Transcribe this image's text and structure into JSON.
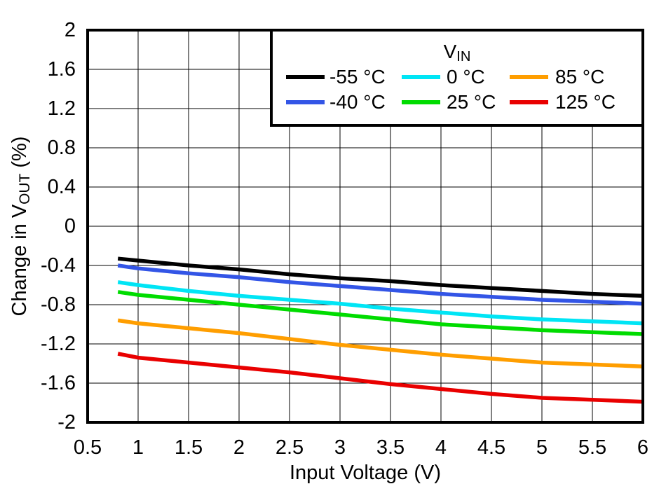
{
  "chart_data": {
    "type": "line",
    "title": "",
    "xlabel": "Input Voltage (V)",
    "ylabel": "Change in VOUT (%)",
    "ylabel_parts": {
      "prefix": "Change in V",
      "sub": "OUT",
      "suffix": " (%)"
    },
    "xlim": [
      0.5,
      6
    ],
    "ylim": [
      -2,
      2
    ],
    "grid": true,
    "x_ticks": [
      "0.5",
      "1",
      "1.5",
      "2",
      "2.5",
      "3",
      "3.5",
      "4",
      "4.5",
      "5",
      "5.5",
      "6"
    ],
    "y_ticks": [
      "2",
      "1.6",
      "1.2",
      "0.8",
      "0.4",
      "0",
      "-0.4",
      "-0.8",
      "-1.2",
      "-1.6",
      "-2"
    ],
    "legend": {
      "title": "VIN",
      "title_parts": {
        "prefix": "V",
        "sub": "IN"
      },
      "position": "top-right"
    },
    "x": [
      0.8,
      1,
      1.5,
      2,
      2.5,
      3,
      3.5,
      4,
      4.5,
      5,
      5.5,
      6
    ],
    "series": [
      {
        "name": "-55 °C",
        "color": "#000000",
        "values": [
          -0.33,
          -0.35,
          -0.4,
          -0.44,
          -0.49,
          -0.53,
          -0.56,
          -0.6,
          -0.63,
          -0.66,
          -0.69,
          -0.71
        ]
      },
      {
        "name": "-40 °C",
        "color": "#3355E6",
        "values": [
          -0.4,
          -0.43,
          -0.48,
          -0.52,
          -0.57,
          -0.61,
          -0.65,
          -0.69,
          -0.72,
          -0.75,
          -0.77,
          -0.79
        ]
      },
      {
        "name": "0 °C",
        "color": "#00E5F5",
        "values": [
          -0.57,
          -0.6,
          -0.66,
          -0.71,
          -0.75,
          -0.79,
          -0.84,
          -0.88,
          -0.92,
          -0.95,
          -0.97,
          -0.99
        ]
      },
      {
        "name": "25 °C",
        "color": "#00DC00",
        "values": [
          -0.67,
          -0.7,
          -0.75,
          -0.8,
          -0.85,
          -0.9,
          -0.95,
          -1.0,
          -1.03,
          -1.06,
          -1.08,
          -1.1
        ]
      },
      {
        "name": "85 °C",
        "color": "#FF9E00",
        "values": [
          -0.96,
          -0.99,
          -1.04,
          -1.09,
          -1.15,
          -1.21,
          -1.26,
          -1.31,
          -1.35,
          -1.39,
          -1.41,
          -1.43
        ]
      },
      {
        "name": "125 °C",
        "color": "#E90000",
        "values": [
          -1.3,
          -1.34,
          -1.39,
          -1.44,
          -1.49,
          -1.55,
          -1.61,
          -1.66,
          -1.71,
          -1.75,
          -1.77,
          -1.79
        ]
      }
    ],
    "axis_color": "#000000",
    "grid_color": "#000000",
    "background_color": "#ffffff"
  }
}
